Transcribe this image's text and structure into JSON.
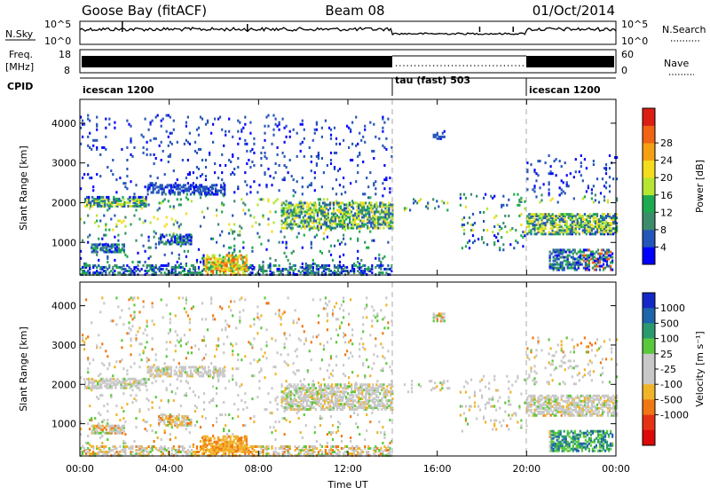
{
  "header": {
    "station": "Goose Bay (fitACF)",
    "beam": "Beam 08",
    "date": "01/Oct/2014"
  },
  "nsky_panel": {
    "label": "N.Sky",
    "right_label": "N.Search",
    "left_ticks": [
      "10^5",
      "10^0"
    ],
    "right_ticks": [
      "10^5",
      "10^0"
    ]
  },
  "freq_panel": {
    "label_line1": "Freq.",
    "label_line2": "[MHz]",
    "left_ticks": [
      "18",
      "8"
    ],
    "right_ticks": [
      "60",
      "0"
    ],
    "right_label": "Nave"
  },
  "cpid_panel": {
    "label": "CPID",
    "segments": [
      {
        "name": "icescan 1200",
        "start": 0,
        "end": 14
      },
      {
        "name": "tau (fast) 503",
        "start": 14,
        "end": 20
      },
      {
        "name": "icescan 1200",
        "start": 20,
        "end": 24
      }
    ]
  },
  "chart_data": [
    {
      "type": "heatmap",
      "name": "Power",
      "ylabel": "Slant Range [km]",
      "xlabel": "Time UT",
      "xlim": [
        0,
        24
      ],
      "ylim": [
        180,
        4600
      ],
      "y_ticks": [
        "1000",
        "2000",
        "3000",
        "4000"
      ],
      "x_ticks": [
        "00:00",
        "04:00",
        "08:00",
        "12:00",
        "16:00",
        "20:00",
        "00:00"
      ],
      "colorbar": {
        "label": "Power [dB]",
        "ticks": [
          "4",
          "8",
          "12",
          "16",
          "20",
          "24",
          "28"
        ],
        "colors": [
          "#0000ff",
          "#2455b8",
          "#3c8c6c",
          "#1eaa50",
          "#b4e632",
          "#f5dc1e",
          "#f5a014",
          "#f06414",
          "#dc1e14"
        ]
      },
      "regions": [
        {
          "t0": 0.0,
          "t1": 14.0,
          "r0": 180,
          "r1": 4200,
          "density": 0.05
        },
        {
          "t0": 0.2,
          "t1": 3.0,
          "r0": 1900,
          "r1": 2150,
          "density": 0.6
        },
        {
          "t0": 3.0,
          "t1": 6.5,
          "r0": 2200,
          "r1": 2450,
          "density": 0.55
        },
        {
          "t0": 9.0,
          "t1": 14.0,
          "r0": 1350,
          "r1": 2000,
          "density": 0.6
        },
        {
          "t0": 0.0,
          "t1": 14.0,
          "r0": 180,
          "r1": 450,
          "density": 0.45
        },
        {
          "t0": 0.5,
          "t1": 2.0,
          "r0": 750,
          "r1": 950,
          "density": 0.7
        },
        {
          "t0": 3.5,
          "t1": 5.0,
          "r0": 950,
          "r1": 1200,
          "density": 0.6
        },
        {
          "t0": 5.5,
          "t1": 7.5,
          "r0": 300,
          "r1": 700,
          "density": 0.6
        },
        {
          "t0": 14.5,
          "t1": 16.5,
          "r0": 1800,
          "r1": 2100,
          "density": 0.12
        },
        {
          "t0": 15.8,
          "t1": 16.3,
          "r0": 3600,
          "r1": 3800,
          "density": 0.6
        },
        {
          "t0": 17.0,
          "t1": 20.0,
          "r0": 800,
          "r1": 2200,
          "density": 0.08
        },
        {
          "t0": 20.0,
          "t1": 24.0,
          "r0": 1200,
          "r1": 1700,
          "density": 0.65
        },
        {
          "t0": 20.0,
          "t1": 24.0,
          "r0": 2000,
          "r1": 3200,
          "density": 0.08
        },
        {
          "t0": 21.0,
          "t1": 23.8,
          "r0": 300,
          "r1": 800,
          "density": 0.55
        }
      ]
    },
    {
      "type": "heatmap",
      "name": "Velocity",
      "ylabel": "Slant Range [km]",
      "xlabel": "Time UT",
      "xlim": [
        0,
        24
      ],
      "ylim": [
        180,
        4600
      ],
      "y_ticks": [
        "1000",
        "2000",
        "3000",
        "4000"
      ],
      "x_ticks": [
        "00:00",
        "04:00",
        "08:00",
        "12:00",
        "16:00",
        "20:00",
        "00:00"
      ],
      "colorbar": {
        "label": "Velocity [m s⁻¹]",
        "ticks": [
          "1000",
          "500",
          "100",
          "25",
          "-25",
          "-100",
          "-500",
          "-1000"
        ],
        "colors": [
          "#1428c8",
          "#1e64aa",
          "#2a9a6e",
          "#5ac83c",
          "#c8c8c8",
          "#c8c8c8",
          "#f0b428",
          "#f07814",
          "#e63214",
          "#dc0a0a"
        ]
      }
    }
  ]
}
